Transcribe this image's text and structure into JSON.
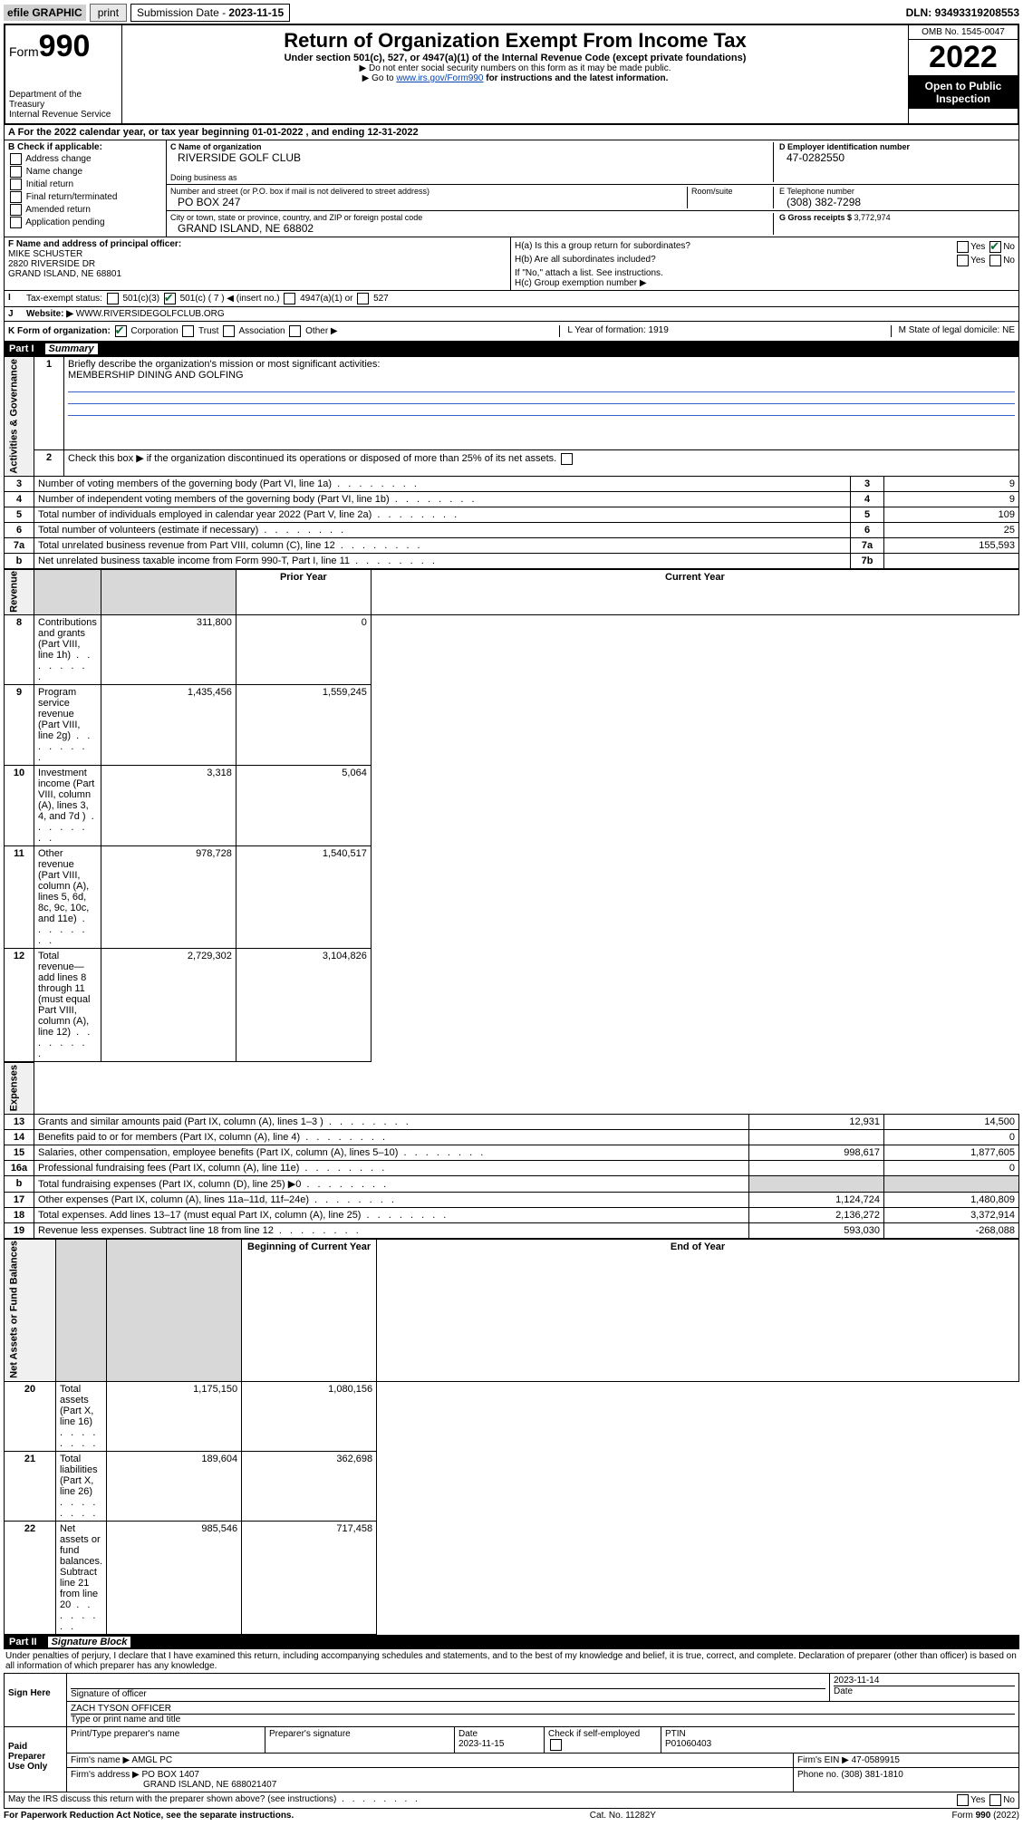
{
  "topbar": {
    "efile": "efile GRAPHIC",
    "print": "print",
    "subdate_lbl": "Submission Date - ",
    "subdate": "2023-11-15",
    "dln_lbl": "DLN: ",
    "dln": "93493319208553"
  },
  "header": {
    "form_lbl": "Form",
    "form_num": "990",
    "dept": "Department of the Treasury",
    "irs": "Internal Revenue Service",
    "title": "Return of Organization Exempt From Income Tax",
    "sub": "Under section 501(c), 527, or 4947(a)(1) of the Internal Revenue Code (except private foundations)",
    "note1": "▶ Do not enter social security numbers on this form as it may be made public.",
    "note2_pre": "▶ Go to ",
    "note2_link": "www.irs.gov/Form990",
    "note2_post": " for instructions and the latest information.",
    "omb": "OMB No. 1545-0047",
    "year": "2022",
    "open": "Open to Public Inspection"
  },
  "rowA": {
    "text": "A For the 2022 calendar year, or tax year beginning 01-01-2022   , and ending 12-31-2022"
  },
  "colB": {
    "hdr": "B Check if applicable:",
    "items": [
      "Address change",
      "Name change",
      "Initial return",
      "Final return/terminated",
      "Amended return",
      "Application pending"
    ]
  },
  "colC": {
    "name_lbl": "C Name of organization",
    "name": "RIVERSIDE GOLF CLUB",
    "dba_lbl": "Doing business as",
    "addr_lbl": "Number and street (or P.O. box if mail is not delivered to street address)",
    "room_lbl": "Room/suite",
    "addr": "PO BOX 247",
    "city_lbl": "City or town, state or province, country, and ZIP or foreign postal code",
    "city": "GRAND ISLAND, NE  68802"
  },
  "colD": {
    "ein_lbl": "D Employer identification number",
    "ein": "47-0282550",
    "tel_lbl": "E Telephone number",
    "tel": "(308) 382-7298",
    "gross_lbl": "G Gross receipts $ ",
    "gross": "3,772,974"
  },
  "colF": {
    "lbl": "F Name and address of principal officer:",
    "name": "MIKE SCHUSTER",
    "addr1": "2820 RIVERSIDE DR",
    "addr2": "GRAND ISLAND, NE  68801"
  },
  "colH": {
    "a": "H(a)  Is this a group return for subordinates?",
    "b": "H(b)  Are all subordinates included?",
    "bnote": "If \"No,\" attach a list. See instructions.",
    "c": "H(c)  Group exemption number ▶",
    "yes": "Yes",
    "no": "No"
  },
  "rowI": {
    "lbl": "Tax-exempt status:",
    "c3": "501(c)(3)",
    "c7": "501(c) ( 7 ) ◀ (insert no.)",
    "a1": "4947(a)(1) or",
    "s527": "527"
  },
  "rowJ": {
    "lbl": "Website: ▶",
    "val": "WWW.RIVERSIDEGOLFCLUB.ORG"
  },
  "rowK": {
    "lbl": "K Form of organization:",
    "corp": "Corporation",
    "trust": "Trust",
    "assoc": "Association",
    "other": "Other ▶",
    "L": "L Year of formation: 1919",
    "M": "M State of legal domicile: NE"
  },
  "part1": {
    "hdr": "Part I",
    "title": "Summary",
    "q1": "Briefly describe the organization's mission or most significant activities:",
    "mission": "MEMBERSHIP DINING AND GOLFING",
    "q2": "Check this box ▶     if the organization discontinued its operations or disposed of more than 25% of its net assets.",
    "lines": [
      {
        "n": "3",
        "t": "Number of voting members of the governing body (Part VI, line 1a)",
        "r": "3",
        "v": "9"
      },
      {
        "n": "4",
        "t": "Number of independent voting members of the governing body (Part VI, line 1b)",
        "r": "4",
        "v": "9"
      },
      {
        "n": "5",
        "t": "Total number of individuals employed in calendar year 2022 (Part V, line 2a)",
        "r": "5",
        "v": "109"
      },
      {
        "n": "6",
        "t": "Total number of volunteers (estimate if necessary)",
        "r": "6",
        "v": "25"
      },
      {
        "n": "7a",
        "t": "Total unrelated business revenue from Part VIII, column (C), line 12",
        "r": "7a",
        "v": "155,593"
      },
      {
        "n": "b",
        "t": "Net unrelated business taxable income from Form 990-T, Part I, line 11",
        "r": "7b",
        "v": ""
      }
    ],
    "py": "Prior Year",
    "cy": "Current Year",
    "boy": "Beginning of Current Year",
    "eoy": "End of Year",
    "rev": [
      {
        "n": "8",
        "t": "Contributions and grants (Part VIII, line 1h)",
        "p": "311,800",
        "c": "0"
      },
      {
        "n": "9",
        "t": "Program service revenue (Part VIII, line 2g)",
        "p": "1,435,456",
        "c": "1,559,245"
      },
      {
        "n": "10",
        "t": "Investment income (Part VIII, column (A), lines 3, 4, and 7d )",
        "p": "3,318",
        "c": "5,064"
      },
      {
        "n": "11",
        "t": "Other revenue (Part VIII, column (A), lines 5, 6d, 8c, 9c, 10c, and 11e)",
        "p": "978,728",
        "c": "1,540,517"
      },
      {
        "n": "12",
        "t": "Total revenue—add lines 8 through 11 (must equal Part VIII, column (A), line 12)",
        "p": "2,729,302",
        "c": "3,104,826"
      }
    ],
    "exp": [
      {
        "n": "13",
        "t": "Grants and similar amounts paid (Part IX, column (A), lines 1–3 )",
        "p": "12,931",
        "c": "14,500"
      },
      {
        "n": "14",
        "t": "Benefits paid to or for members (Part IX, column (A), line 4)",
        "p": "",
        "c": "0"
      },
      {
        "n": "15",
        "t": "Salaries, other compensation, employee benefits (Part IX, column (A), lines 5–10)",
        "p": "998,617",
        "c": "1,877,605"
      },
      {
        "n": "16a",
        "t": "Professional fundraising fees (Part IX, column (A), line 11e)",
        "p": "",
        "c": "0"
      },
      {
        "n": "b",
        "t": "Total fundraising expenses (Part IX, column (D), line 25) ▶0",
        "p": "__gray__",
        "c": "__gray__"
      },
      {
        "n": "17",
        "t": "Other expenses (Part IX, column (A), lines 11a–11d, 11f–24e)",
        "p": "1,124,724",
        "c": "1,480,809"
      },
      {
        "n": "18",
        "t": "Total expenses. Add lines 13–17 (must equal Part IX, column (A), line 25)",
        "p": "2,136,272",
        "c": "3,372,914"
      },
      {
        "n": "19",
        "t": "Revenue less expenses. Subtract line 18 from line 12",
        "p": "593,030",
        "c": "-268,088"
      }
    ],
    "na": [
      {
        "n": "20",
        "t": "Total assets (Part X, line 16)",
        "p": "1,175,150",
        "c": "1,080,156"
      },
      {
        "n": "21",
        "t": "Total liabilities (Part X, line 26)",
        "p": "189,604",
        "c": "362,698"
      },
      {
        "n": "22",
        "t": "Net assets or fund balances. Subtract line 21 from line 20",
        "p": "985,546",
        "c": "717,458"
      }
    ],
    "vlabels": {
      "ag": "Activities & Governance",
      "rev": "Revenue",
      "exp": "Expenses",
      "na": "Net Assets or Fund Balances"
    }
  },
  "part2": {
    "hdr": "Part II",
    "title": "Signature Block",
    "decl": "Under penalties of perjury, I declare that I have examined this return, including accompanying schedules and statements, and to the best of my knowledge and belief, it is true, correct, and complete. Declaration of preparer (other than officer) is based on all information of which preparer has any knowledge.",
    "sign_here": "Sign Here",
    "sig_officer": "Signature of officer",
    "date_lbl": "Date",
    "sig_date": "2023-11-14",
    "officer_name": "ZACH TYSON  OFFICER",
    "name_title_lbl": "Type or print name and title",
    "paid": "Paid Preparer Use Only",
    "prep_name_lbl": "Print/Type preparer's name",
    "prep_sig_lbl": "Preparer's signature",
    "prep_date": "2023-11-15",
    "self_emp": "Check        if self-employed",
    "ptin_lbl": "PTIN",
    "ptin": "P01060403",
    "firm_name_lbl": "Firm's name   ▶",
    "firm_name": "AMGL PC",
    "firm_ein_lbl": "Firm's EIN ▶",
    "firm_ein": "47-0589915",
    "firm_addr_lbl": "Firm's address ▶",
    "firm_addr1": "PO BOX 1407",
    "firm_addr2": "GRAND ISLAND, NE  688021407",
    "firm_phone_lbl": "Phone no.",
    "firm_phone": "(308) 381-1810",
    "discuss": "May the IRS discuss this return with the preparer shown above? (see instructions)"
  },
  "footer": {
    "pra": "For Paperwork Reduction Act Notice, see the separate instructions.",
    "cat": "Cat. No. 11282Y",
    "form": "Form 990 (2022)"
  }
}
